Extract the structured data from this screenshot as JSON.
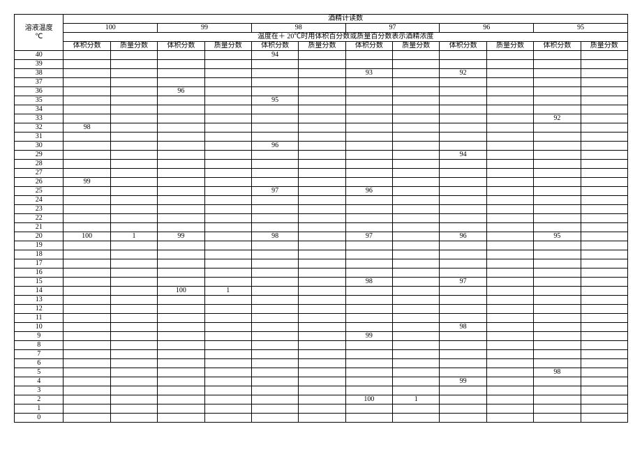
{
  "header": {
    "row_label_line1": "溶液温度",
    "row_label_line2": "℃",
    "top_span_label": "酒精计读数",
    "mid_span_label": "温度在＋ 20℃时用体积百分数或质量百分数表示酒精浓度",
    "group_labels": [
      "100",
      "99",
      "98",
      "97",
      "96",
      "95"
    ],
    "sub_label_vol": "体积分数",
    "sub_label_mass": "质量分数"
  },
  "row_temps": [
    "40",
    "39",
    "38",
    "37",
    "36",
    "35",
    "34",
    "33",
    "32",
    "31",
    "30",
    "29",
    "28",
    "27",
    "26",
    "25",
    "24",
    "23",
    "22",
    "21",
    "20",
    "19",
    "18",
    "17",
    "16",
    "15",
    "14",
    "13",
    "12",
    "11",
    "10",
    "9",
    "8",
    "7",
    "6",
    "5",
    "4",
    "3",
    "2",
    "1",
    "0"
  ],
  "cells": {
    "40": [
      "",
      "",
      "",
      "",
      "94",
      "",
      "",
      "",
      "",
      "",
      "",
      ""
    ],
    "39": [
      "",
      "",
      "",
      "",
      "",
      "",
      "",
      "",
      "",
      "",
      "",
      ""
    ],
    "38": [
      "",
      "",
      "",
      "",
      "",
      "",
      "93",
      "",
      "92",
      "",
      "",
      ""
    ],
    "37": [
      "",
      "",
      "",
      "",
      "",
      "",
      "",
      "",
      "",
      "",
      "",
      ""
    ],
    "36": [
      "",
      "",
      "96",
      "",
      "",
      "",
      "",
      "",
      "",
      "",
      "",
      ""
    ],
    "35": [
      "",
      "",
      "",
      "",
      "95",
      "",
      "",
      "",
      "",
      "",
      "",
      ""
    ],
    "34": [
      "",
      "",
      "",
      "",
      "",
      "",
      "",
      "",
      "",
      "",
      "",
      ""
    ],
    "33": [
      "",
      "",
      "",
      "",
      "",
      "",
      "",
      "",
      "",
      "",
      "92",
      ""
    ],
    "32": [
      "98",
      "",
      "",
      "",
      "",
      "",
      "",
      "",
      "",
      "",
      "",
      ""
    ],
    "31": [
      "",
      "",
      "",
      "",
      "",
      "",
      "",
      "",
      "",
      "",
      "",
      ""
    ],
    "30": [
      "",
      "",
      "",
      "",
      "96",
      "",
      "",
      "",
      "",
      "",
      "",
      ""
    ],
    "29": [
      "",
      "",
      "",
      "",
      "",
      "",
      "",
      "",
      "94",
      "",
      "",
      ""
    ],
    "28": [
      "",
      "",
      "",
      "",
      "",
      "",
      "",
      "",
      "",
      "",
      "",
      ""
    ],
    "27": [
      "",
      "",
      "",
      "",
      "",
      "",
      "",
      "",
      "",
      "",
      "",
      ""
    ],
    "26": [
      "99",
      "",
      "",
      "",
      "",
      "",
      "",
      "",
      "",
      "",
      "",
      ""
    ],
    "25": [
      "",
      "",
      "",
      "",
      "97",
      "",
      "96",
      "",
      "",
      "",
      "",
      ""
    ],
    "24": [
      "",
      "",
      "",
      "",
      "",
      "",
      "",
      "",
      "",
      "",
      "",
      ""
    ],
    "23": [
      "",
      "",
      "",
      "",
      "",
      "",
      "",
      "",
      "",
      "",
      "",
      ""
    ],
    "22": [
      "",
      "",
      "",
      "",
      "",
      "",
      "",
      "",
      "",
      "",
      "",
      ""
    ],
    "21": [
      "",
      "",
      "",
      "",
      "",
      "",
      "",
      "",
      "",
      "",
      "",
      ""
    ],
    "20": [
      "100",
      "1",
      "99",
      "",
      "98",
      "",
      "97",
      "",
      "96",
      "",
      "95",
      ""
    ],
    "19": [
      "",
      "",
      "",
      "",
      "",
      "",
      "",
      "",
      "",
      "",
      "",
      ""
    ],
    "18": [
      "",
      "",
      "",
      "",
      "",
      "",
      "",
      "",
      "",
      "",
      "",
      ""
    ],
    "17": [
      "",
      "",
      "",
      "",
      "",
      "",
      "",
      "",
      "",
      "",
      "",
      ""
    ],
    "16": [
      "",
      "",
      "",
      "",
      "",
      "",
      "",
      "",
      "",
      "",
      "",
      ""
    ],
    "15": [
      "",
      "",
      "",
      "",
      "",
      "",
      "98",
      "",
      "97",
      "",
      "",
      ""
    ],
    "14": [
      "",
      "",
      "100",
      "1",
      "",
      "",
      "",
      "",
      "",
      "",
      "",
      ""
    ],
    "13": [
      "",
      "",
      "",
      "",
      "",
      "",
      "",
      "",
      "",
      "",
      "",
      ""
    ],
    "12": [
      "",
      "",
      "",
      "",
      "",
      "",
      "",
      "",
      "",
      "",
      "",
      ""
    ],
    "11": [
      "",
      "",
      "",
      "",
      "",
      "",
      "",
      "",
      "",
      "",
      "",
      ""
    ],
    "10": [
      "",
      "",
      "",
      "",
      "",
      "",
      "",
      "",
      "98",
      "",
      "",
      ""
    ],
    "9": [
      "",
      "",
      "",
      "",
      "",
      "",
      "99",
      "",
      "",
      "",
      "",
      ""
    ],
    "8": [
      "",
      "",
      "",
      "",
      "",
      "",
      "",
      "",
      "",
      "",
      "",
      ""
    ],
    "7": [
      "",
      "",
      "",
      "",
      "",
      "",
      "",
      "",
      "",
      "",
      "",
      ""
    ],
    "6": [
      "",
      "",
      "",
      "",
      "",
      "",
      "",
      "",
      "",
      "",
      "",
      ""
    ],
    "5": [
      "",
      "",
      "",
      "",
      "",
      "",
      "",
      "",
      "",
      "",
      "98",
      ""
    ],
    "4": [
      "",
      "",
      "",
      "",
      "",
      "",
      "",
      "",
      "99",
      "",
      "",
      ""
    ],
    "3": [
      "",
      "",
      "",
      "",
      "",
      "",
      "",
      "",
      "",
      "",
      "",
      ""
    ],
    "2": [
      "",
      "",
      "",
      "",
      "",
      "",
      "100",
      "1",
      "",
      "",
      "",
      ""
    ],
    "1": [
      "",
      "",
      "",
      "",
      "",
      "",
      "",
      "",
      "",
      "",
      "",
      ""
    ],
    "0": [
      "",
      "",
      "",
      "",
      "",
      "",
      "",
      "",
      "",
      "",
      "",
      ""
    ]
  }
}
